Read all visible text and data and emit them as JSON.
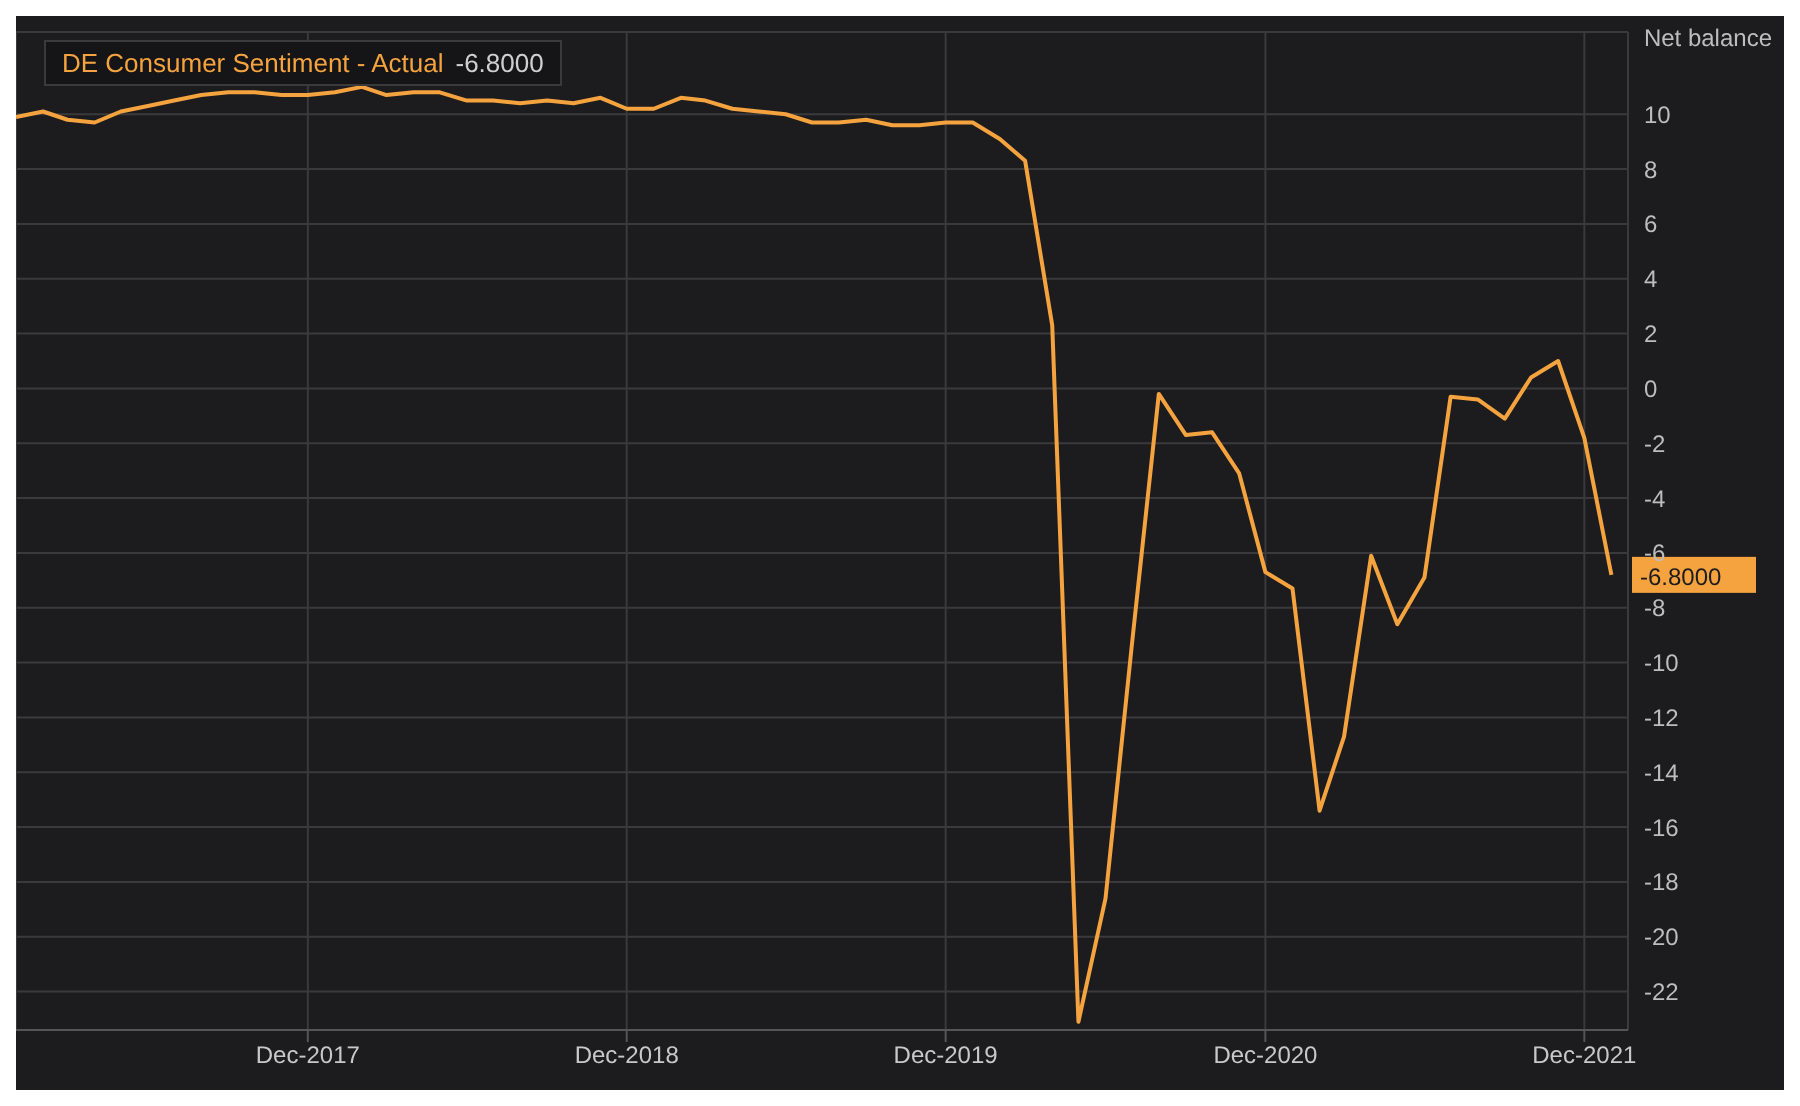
{
  "chart_data": {
    "type": "line",
    "ylabel": "Net balance",
    "legend": "top left",
    "x": [
      "2017-01",
      "2017-02",
      "2017-03",
      "2017-04",
      "2017-05",
      "2017-06",
      "2017-07",
      "2017-08",
      "2017-09",
      "2017-10",
      "2017-11",
      "2017-12",
      "2018-01",
      "2018-02",
      "2018-03",
      "2018-04",
      "2018-05",
      "2018-06",
      "2018-07",
      "2018-08",
      "2018-09",
      "2018-10",
      "2018-11",
      "2018-12",
      "2019-01",
      "2019-02",
      "2019-03",
      "2019-04",
      "2019-05",
      "2019-06",
      "2019-07",
      "2019-08",
      "2019-09",
      "2019-10",
      "2019-11",
      "2019-12",
      "2020-01",
      "2020-02",
      "2020-03",
      "2020-04",
      "2020-05",
      "2020-06",
      "2020-07",
      "2020-08",
      "2020-09",
      "2020-10",
      "2020-11",
      "2020-12",
      "2021-01",
      "2021-02",
      "2021-03",
      "2021-04",
      "2021-05",
      "2021-06",
      "2021-07",
      "2021-08",
      "2021-09",
      "2021-10",
      "2021-11",
      "2021-12",
      "2022-01"
    ],
    "series": [
      {
        "name": "DE Consumer Sentiment - Actual",
        "color": "#f5a33f",
        "values": [
          9.9,
          10.1,
          9.8,
          9.7,
          10.1,
          10.3,
          10.5,
          10.7,
          10.8,
          10.8,
          10.7,
          10.7,
          10.8,
          11.0,
          10.7,
          10.8,
          10.8,
          10.5,
          10.5,
          10.4,
          10.5,
          10.4,
          10.6,
          10.2,
          10.2,
          10.6,
          10.5,
          10.2,
          10.1,
          10.0,
          9.7,
          9.7,
          9.8,
          9.6,
          9.6,
          9.7,
          9.7,
          9.1,
          8.3,
          2.3,
          -23.1,
          -18.6,
          -9.4,
          -0.2,
          -1.7,
          -1.6,
          -3.1,
          -6.7,
          -7.3,
          -15.4,
          -12.7,
          -6.1,
          -8.6,
          -6.9,
          -0.3,
          -0.4,
          -1.1,
          0.4,
          1.0,
          -1.8,
          -6.8
        ]
      }
    ],
    "xlim": [
      "2017-01-01",
      "2022-01-20"
    ],
    "xticks": [
      {
        "value": "2017-12-01",
        "label": "Dec-2017"
      },
      {
        "value": "2018-12-01",
        "label": "Dec-2018"
      },
      {
        "value": "2019-12-01",
        "label": "Dec-2019"
      },
      {
        "value": "2020-12-01",
        "label": "Dec-2020"
      },
      {
        "value": "2021-12-01",
        "label": "Dec-2021"
      }
    ],
    "ylim": [
      -23.4,
      13
    ],
    "yticks": [
      -22,
      -20,
      -18,
      -16,
      -14,
      -12,
      -10,
      -8,
      -6,
      -4,
      -2,
      0,
      2,
      4,
      6,
      8,
      10
    ],
    "grid": true,
    "marker": "none",
    "line_style": "solid",
    "annotations": [
      "-6.8000",
      {
        "text": "-6.8000",
        "x": "2022-01",
        "y": -6.8
      }
    ]
  }
}
